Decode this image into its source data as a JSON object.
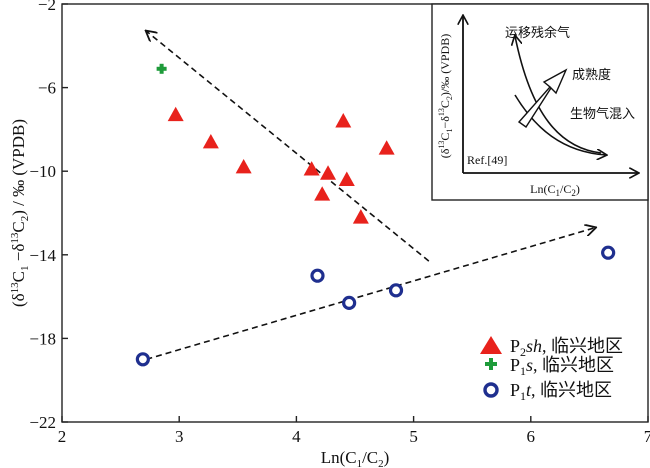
{
  "chart_data": {
    "type": "scatter",
    "xlabel": "Ln(C1/C2)",
    "ylabel": "(δ13C1−δ13C2)/‰(VPDB)",
    "xlim": [
      2,
      7
    ],
    "ylim": [
      -22,
      -2
    ],
    "x_ticks": [
      2,
      3,
      4,
      5,
      6,
      7
    ],
    "y_ticks": [
      -2,
      -6,
      -10,
      -14,
      -18,
      -22
    ],
    "series": [
      {
        "name": "P2sh, 临兴地区",
        "marker": "triangle",
        "color": "#e8221c",
        "points": [
          [
            2.97,
            -7.3
          ],
          [
            3.27,
            -8.6
          ],
          [
            3.55,
            -9.8
          ],
          [
            4.13,
            -9.9
          ],
          [
            4.22,
            -11.1
          ],
          [
            4.27,
            -10.1
          ],
          [
            4.4,
            -7.6
          ],
          [
            4.43,
            -10.4
          ],
          [
            4.55,
            -12.2
          ],
          [
            4.77,
            -8.9
          ]
        ]
      },
      {
        "name": "P1s, 临兴地区",
        "marker": "plus",
        "color": "#1e9b3a",
        "points": [
          [
            2.85,
            -5.1
          ]
        ]
      },
      {
        "name": "P1t, 临兴地区",
        "marker": "ring",
        "color": "#1f2f8f",
        "points": [
          [
            2.69,
            -19.0
          ],
          [
            4.18,
            -15.0
          ],
          [
            4.45,
            -16.3
          ],
          [
            4.85,
            -15.7
          ],
          [
            6.66,
            -13.9
          ]
        ]
      }
    ],
    "trend_lines": [
      {
        "from": [
          5.13,
          -14.3
        ],
        "to": [
          2.72,
          -3.3
        ]
      },
      {
        "from": [
          2.72,
          -19.0
        ],
        "to": [
          6.55,
          -12.7
        ]
      }
    ],
    "legend": {
      "placement": "bottom-right",
      "entries": [
        {
          "sub": "2",
          "ital": "sh",
          "rest": ", 临兴地区"
        },
        {
          "sub": "1",
          "ital": "s",
          "rest": ", 临兴地区"
        },
        {
          "sub": "1",
          "ital": "t",
          "rest": ", 临兴地区"
        }
      ]
    },
    "inset": {
      "placement": "top-right",
      "labels": {
        "migration": "运移残余气",
        "maturity": "成熟度",
        "bio_mix": "生物气混入",
        "ref": "Ref.[49]"
      }
    }
  }
}
